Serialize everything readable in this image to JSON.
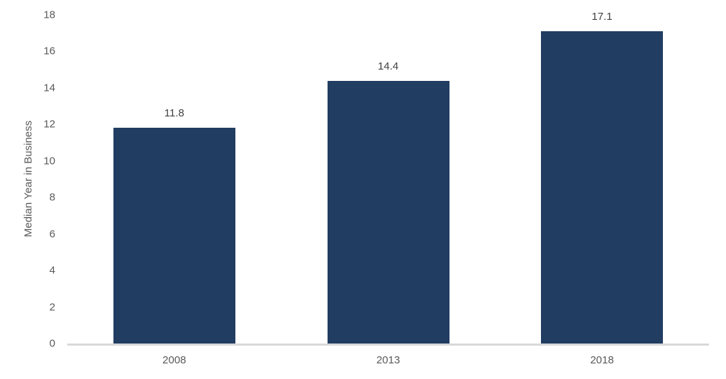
{
  "chart_data": {
    "type": "bar",
    "categories": [
      "2008",
      "2013",
      "2018"
    ],
    "values": [
      11.8,
      14.4,
      17.1
    ],
    "data_labels": [
      "11.8",
      "14.4",
      "17.1"
    ],
    "title": "",
    "xlabel": "",
    "ylabel": "Median Year in Business",
    "ylim": [
      0,
      18
    ],
    "yticks": [
      0,
      2,
      4,
      6,
      8,
      10,
      12,
      14,
      16,
      18
    ],
    "grid": false,
    "legend_position": "none",
    "colors": {
      "bar_fill": "#213D62",
      "tick_label_text": "#595959",
      "data_label_text": "#404040",
      "axis_line": "#D9D9D9",
      "background": "#FFFFFF"
    }
  }
}
